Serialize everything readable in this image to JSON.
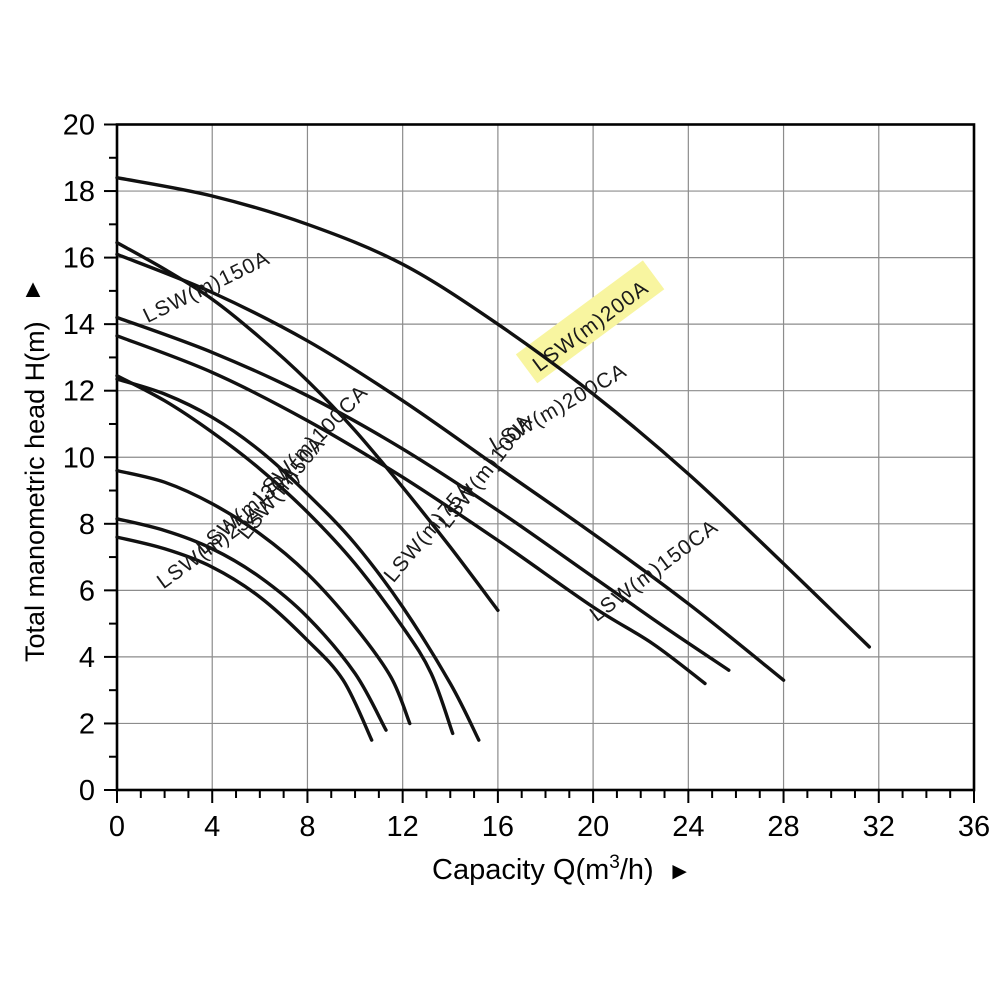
{
  "chart_data": {
    "type": "line",
    "title": "",
    "xlabel": "Capacity Q(m³/h)",
    "xlabel_parts": {
      "pre": "Capacity Q(m",
      "sup": "3",
      "post": "/h)"
    },
    "x_axis_arrow": "►",
    "ylabel": "Total manometric head H(m)",
    "y_axis_arrow": "▲",
    "xlim": [
      0,
      36
    ],
    "ylim": [
      0,
      20
    ],
    "x_major_ticks": [
      0,
      4,
      8,
      12,
      16,
      20,
      24,
      28,
      32,
      36
    ],
    "y_major_ticks": [
      0,
      2,
      4,
      6,
      8,
      10,
      12,
      14,
      16,
      18,
      20
    ],
    "minor_tick_step": 1,
    "grid": {
      "vertical_every": 4,
      "horizontal_every": 2,
      "on": true,
      "legend": "none"
    },
    "series": [
      {
        "name": "LSW(m)25A",
        "points": [
          [
            0,
            7.6
          ],
          [
            2,
            7.25
          ],
          [
            4,
            6.7
          ],
          [
            6,
            5.8
          ],
          [
            8,
            4.5
          ],
          [
            9.5,
            3.3
          ],
          [
            10.7,
            1.5
          ]
        ],
        "label": {
          "text": "LSW(m)25A",
          "x": 1.81,
          "y": 6.16,
          "rot": -36,
          "highlight": false
        }
      },
      {
        "name": "LSW(m)30A",
        "points": [
          [
            0,
            8.15
          ],
          [
            2,
            7.8
          ],
          [
            4,
            7.25
          ],
          [
            6,
            6.4
          ],
          [
            8,
            5.2
          ],
          [
            10,
            3.5
          ],
          [
            11.3,
            1.8
          ]
        ],
        "label": {
          "text": "LSW(m)30A",
          "x": 3.49,
          "y": 7.18,
          "rot": -40,
          "highlight": false
        }
      },
      {
        "name": "LSW(m)50A",
        "points": [
          [
            0,
            9.6
          ],
          [
            2,
            9.25
          ],
          [
            4,
            8.6
          ],
          [
            6,
            7.7
          ],
          [
            8,
            6.5
          ],
          [
            10,
            4.9
          ],
          [
            11.5,
            3.4
          ],
          [
            12.3,
            2.0
          ]
        ],
        "label": {
          "text": "LSW(m)50A",
          "x": 5.29,
          "y": 7.6,
          "rot": -51,
          "highlight": false
        }
      },
      {
        "name": "LSW(m)75A",
        "points": [
          [
            0,
            12.35
          ],
          [
            2,
            11.9
          ],
          [
            4,
            11.2
          ],
          [
            6,
            10.2
          ],
          [
            8,
            8.9
          ],
          [
            10,
            7.4
          ],
          [
            12,
            5.5
          ],
          [
            14,
            3.2
          ],
          [
            15.2,
            1.5
          ]
        ],
        "label": {
          "text": "LSW(m)75A",
          "x": 11.43,
          "y": 6.31,
          "rot": -50,
          "highlight": false
        }
      },
      {
        "name": "LSW(m)100A",
        "points": [
          [
            0,
            16.45
          ],
          [
            2,
            15.65
          ],
          [
            4,
            14.75
          ],
          [
            6,
            13.6
          ],
          [
            8,
            12.3
          ],
          [
            10,
            10.8
          ],
          [
            12,
            9.1
          ],
          [
            14,
            7.3
          ],
          [
            16,
            5.4
          ]
        ],
        "label": {
          "text": "LSW(m)100A",
          "x": 13.74,
          "y": 7.93,
          "rot": -52,
          "highlight": false
        }
      },
      {
        "name": "LSW(m)100CA",
        "points": [
          [
            0,
            12.45
          ],
          [
            2,
            11.7
          ],
          [
            4,
            10.75
          ],
          [
            6,
            9.65
          ],
          [
            8,
            8.35
          ],
          [
            10,
            6.8
          ],
          [
            12,
            4.9
          ],
          [
            13.2,
            3.5
          ],
          [
            14.1,
            1.7
          ]
        ],
        "label": {
          "text": "LSW(m)100CA",
          "x": 5.92,
          "y": 8.71,
          "rot": -46,
          "highlight": false
        }
      },
      {
        "name": "LSW(m)150A",
        "points": [
          [
            0,
            14.2
          ],
          [
            4,
            13.15
          ],
          [
            8,
            11.85
          ],
          [
            12,
            10.25
          ],
          [
            16,
            8.4
          ],
          [
            20,
            6.4
          ],
          [
            23,
            4.9
          ],
          [
            25.7,
            3.6
          ]
        ],
        "label": {
          "text": "LSW(m)150A",
          "x": 1.18,
          "y": 14.18,
          "rot": -26,
          "highlight": false
        }
      },
      {
        "name": "LSW(m)150CA",
        "points": [
          [
            0,
            13.65
          ],
          [
            4,
            12.55
          ],
          [
            8,
            11.1
          ],
          [
            12,
            9.4
          ],
          [
            16,
            7.5
          ],
          [
            20,
            5.5
          ],
          [
            22.5,
            4.4
          ],
          [
            24.7,
            3.2
          ]
        ],
        "label": {
          "text": "LSW(m)150CA",
          "x": 20.0,
          "y": 5.17,
          "rot": -37,
          "highlight": false
        }
      },
      {
        "name": "LSW(m)200A",
        "points": [
          [
            0,
            18.4
          ],
          [
            4,
            17.85
          ],
          [
            8,
            17.0
          ],
          [
            12,
            15.8
          ],
          [
            16,
            14.0
          ],
          [
            20,
            11.9
          ],
          [
            24,
            9.5
          ],
          [
            28,
            6.8
          ],
          [
            31.6,
            4.3
          ]
        ],
        "label": {
          "text": "LSW(m)200A",
          "x": 17.6,
          "y": 12.68,
          "rot": -36.5,
          "highlight": true
        }
      },
      {
        "name": "LSW(m)200CA",
        "points": [
          [
            0,
            16.1
          ],
          [
            4,
            14.95
          ],
          [
            8,
            13.5
          ],
          [
            12,
            11.7
          ],
          [
            16,
            9.7
          ],
          [
            20,
            7.7
          ],
          [
            24,
            5.6
          ],
          [
            28,
            3.3
          ]
        ],
        "label": {
          "text": "LSW(m)200CA",
          "x": 15.75,
          "y": 10.31,
          "rot": -30,
          "highlight": false
        }
      }
    ]
  },
  "colors": {
    "background": "#ffffff",
    "curve": "#111111",
    "frame": "#000000",
    "grid": "#8c8c8c",
    "tick_label": "#000000",
    "curve_label": "#1a1a1a",
    "highlight": "#f8f5a0"
  }
}
